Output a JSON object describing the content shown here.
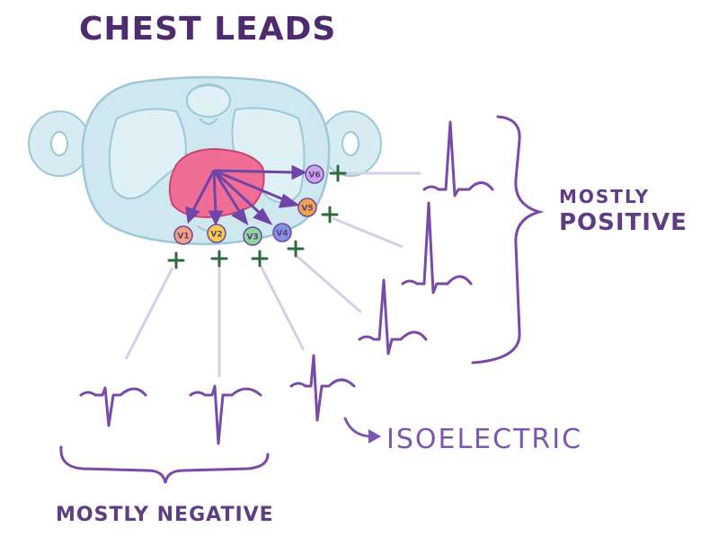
{
  "title": "CHEST LEADS",
  "leads": [
    {
      "label": "V1",
      "color": "#f4a07c"
    },
    {
      "label": "V2",
      "color": "#f7cc4b"
    },
    {
      "label": "V3",
      "color": "#8ed69a"
    },
    {
      "label": "V4",
      "color": "#7f93e0"
    },
    {
      "label": "V5",
      "color": "#f4a34d"
    },
    {
      "label": "V6",
      "color": "#c9a3e8"
    }
  ],
  "positive_label": [
    "MOSTLY",
    "POSITIVE"
  ],
  "negative_label": "MOSTLY NEGATIVE",
  "isoelectric_label": "ISOELECTRIC",
  "colors": {
    "text": "#5e3d83",
    "waveform": "#7a4aa8",
    "arrow": "#6f45a8",
    "torso": "#cfe8ef",
    "torso_outline": "#9cc8d8",
    "heart": "#f06d95",
    "plus": "#2e6b3c",
    "connector": "#d8cde8"
  }
}
